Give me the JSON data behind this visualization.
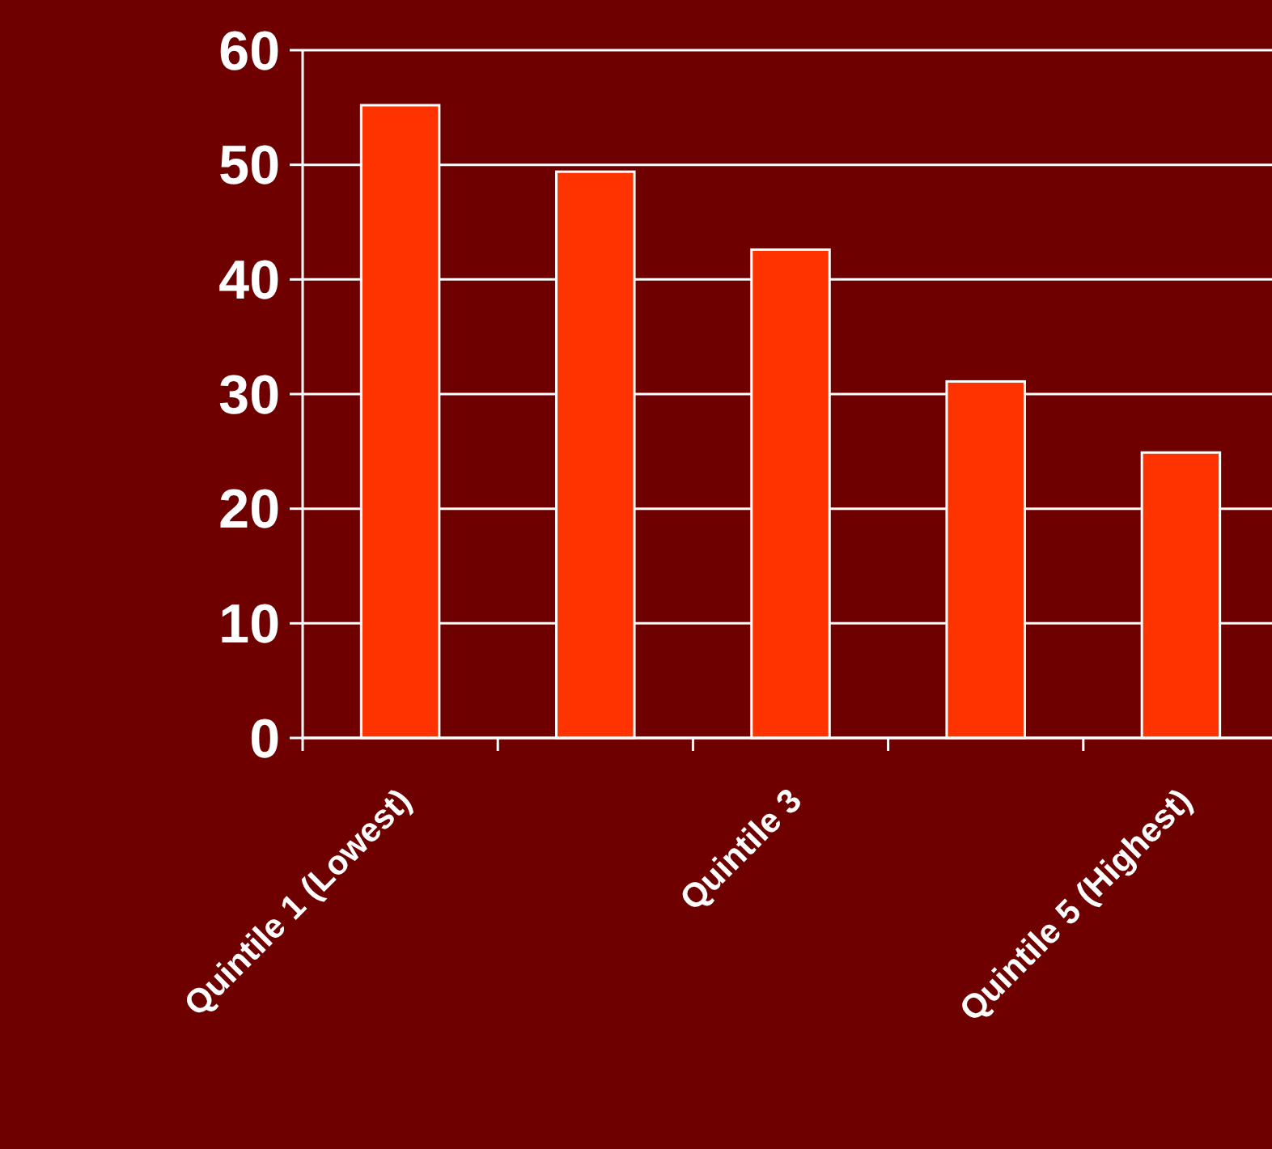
{
  "chart_data": {
    "type": "bar",
    "categories": [
      "Quintile 1 (Lowest)",
      null,
      "Quintile 3",
      null,
      "Quintile 5 (Highest)"
    ],
    "values": [
      55.2,
      49.4,
      42.6,
      31.1,
      24.9
    ],
    "color": "#ff3300",
    "ylim": [
      0,
      60
    ],
    "yticks": [
      0,
      10,
      20,
      30,
      40,
      50,
      60
    ],
    "grid": "y"
  }
}
